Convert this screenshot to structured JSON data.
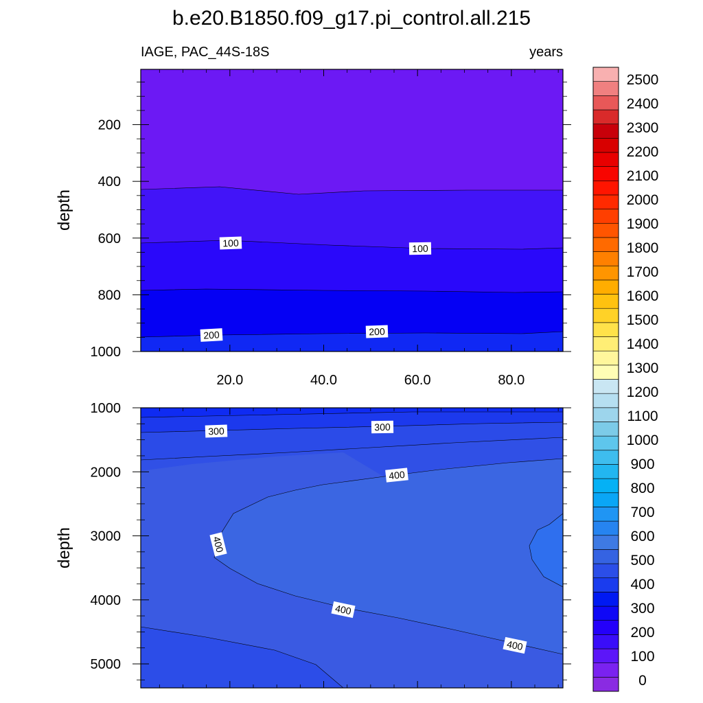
{
  "title": "b.e20.B1850.f09_g17.pi_control.all.215",
  "left_subtitle": "IAGE, PAC_44S-18S",
  "right_subtitle": "years",
  "chart_data": {
    "type": "contour",
    "variable": "IAGE",
    "region": "PAC_44S-18S",
    "units": "years",
    "x_ticks": [
      "20.0",
      "40.0",
      "60.0",
      "80.0"
    ],
    "x_range": [
      1,
      91
    ],
    "colorbar": {
      "levels": [
        0,
        100,
        200,
        300,
        400,
        500,
        600,
        700,
        800,
        900,
        1000,
        1100,
        1200,
        1300,
        1400,
        1500,
        1600,
        1700,
        1800,
        1900,
        2000,
        2100,
        2200,
        2300,
        2400,
        2500
      ],
      "labels": [
        "0",
        "100",
        "200",
        "300",
        "400",
        "500",
        "600",
        "700",
        "800",
        "900",
        "1000",
        "1100",
        "1200",
        "1300",
        "1400",
        "1500",
        "1600",
        "1700",
        "1800",
        "1900",
        "2000",
        "2100",
        "2200",
        "2300",
        "2400",
        "2500"
      ],
      "colors": [
        "#8a2be2",
        "#7a22f0",
        "#5c16f8",
        "#3a0df9",
        "#2400fa",
        "#0f08f6",
        "#0019f2",
        "#1a3cee",
        "#2b4ee8",
        "#3563e2",
        "#3e7ae3",
        "#2684f0",
        "#1f95f4",
        "#0aa6f6",
        "#05b1f5",
        "#22b6f0",
        "#3ebdee",
        "#5ec6ec",
        "#7ccbe8",
        "#9dd5ec",
        "#b6dff1",
        "#c9e6f3",
        "#fffdb5",
        "#fff69c",
        "#ffee75",
        "#ffe24a",
        "#ffd227",
        "#ffc20f",
        "#ffad00",
        "#ff9500",
        "#ff8000",
        "#ff6a00",
        "#ff5500",
        "#ff3f00",
        "#ff2a00",
        "#ff1500",
        "#f80500",
        "#e80000",
        "#d80000",
        "#c8000a",
        "#d92a2a",
        "#e85858",
        "#f08080",
        "#f8b0b0"
      ]
    },
    "panels": [
      {
        "name": "upper",
        "ylabel": "depth",
        "y_ticks": [
          "200",
          "400",
          "600",
          "800",
          "1000"
        ],
        "y_range": [
          5,
          1000
        ],
        "contours": [
          {
            "label": "100",
            "depth_profile": [
              [
                1,
                623
              ],
              [
                20,
                618
              ],
              [
                40,
                625
              ],
              [
                60,
                632
              ],
              [
                80,
                636
              ],
              [
                91,
                635
              ]
            ]
          },
          {
            "label": "200",
            "depth_profile": [
              [
                1,
                950
              ],
              [
                20,
                943
              ],
              [
                40,
                938
              ],
              [
                60,
                934
              ],
              [
                80,
                938
              ],
              [
                91,
                930
              ]
            ]
          }
        ],
        "band_boundaries": [
          {
            "value": 50,
            "depth_profile": [
              [
                1,
                425
              ],
              [
                20,
                420
              ],
              [
                35,
                440
              ],
              [
                50,
                432
              ],
              [
                70,
                430
              ],
              [
                91,
                430
              ]
            ]
          },
          {
            "value": 150,
            "depth_profile": [
              [
                1,
                780
              ],
              [
                20,
                775
              ],
              [
                40,
                780
              ],
              [
                60,
                783
              ],
              [
                80,
                787
              ],
              [
                91,
                784
              ]
            ]
          }
        ]
      },
      {
        "name": "lower",
        "ylabel": "depth",
        "y_ticks": [
          "1000",
          "2000",
          "3000",
          "4000",
          "5000"
        ],
        "y_range": [
          1000,
          5375
        ],
        "contours": [
          {
            "label": "300",
            "depth_profile": [
              [
                1,
                1370
              ],
              [
                20,
                1340
              ],
              [
                50,
                1290
              ],
              [
                80,
                1230
              ],
              [
                91,
                1180
              ]
            ]
          },
          {
            "label": "400",
            "closed_region": true
          }
        ]
      }
    ]
  }
}
